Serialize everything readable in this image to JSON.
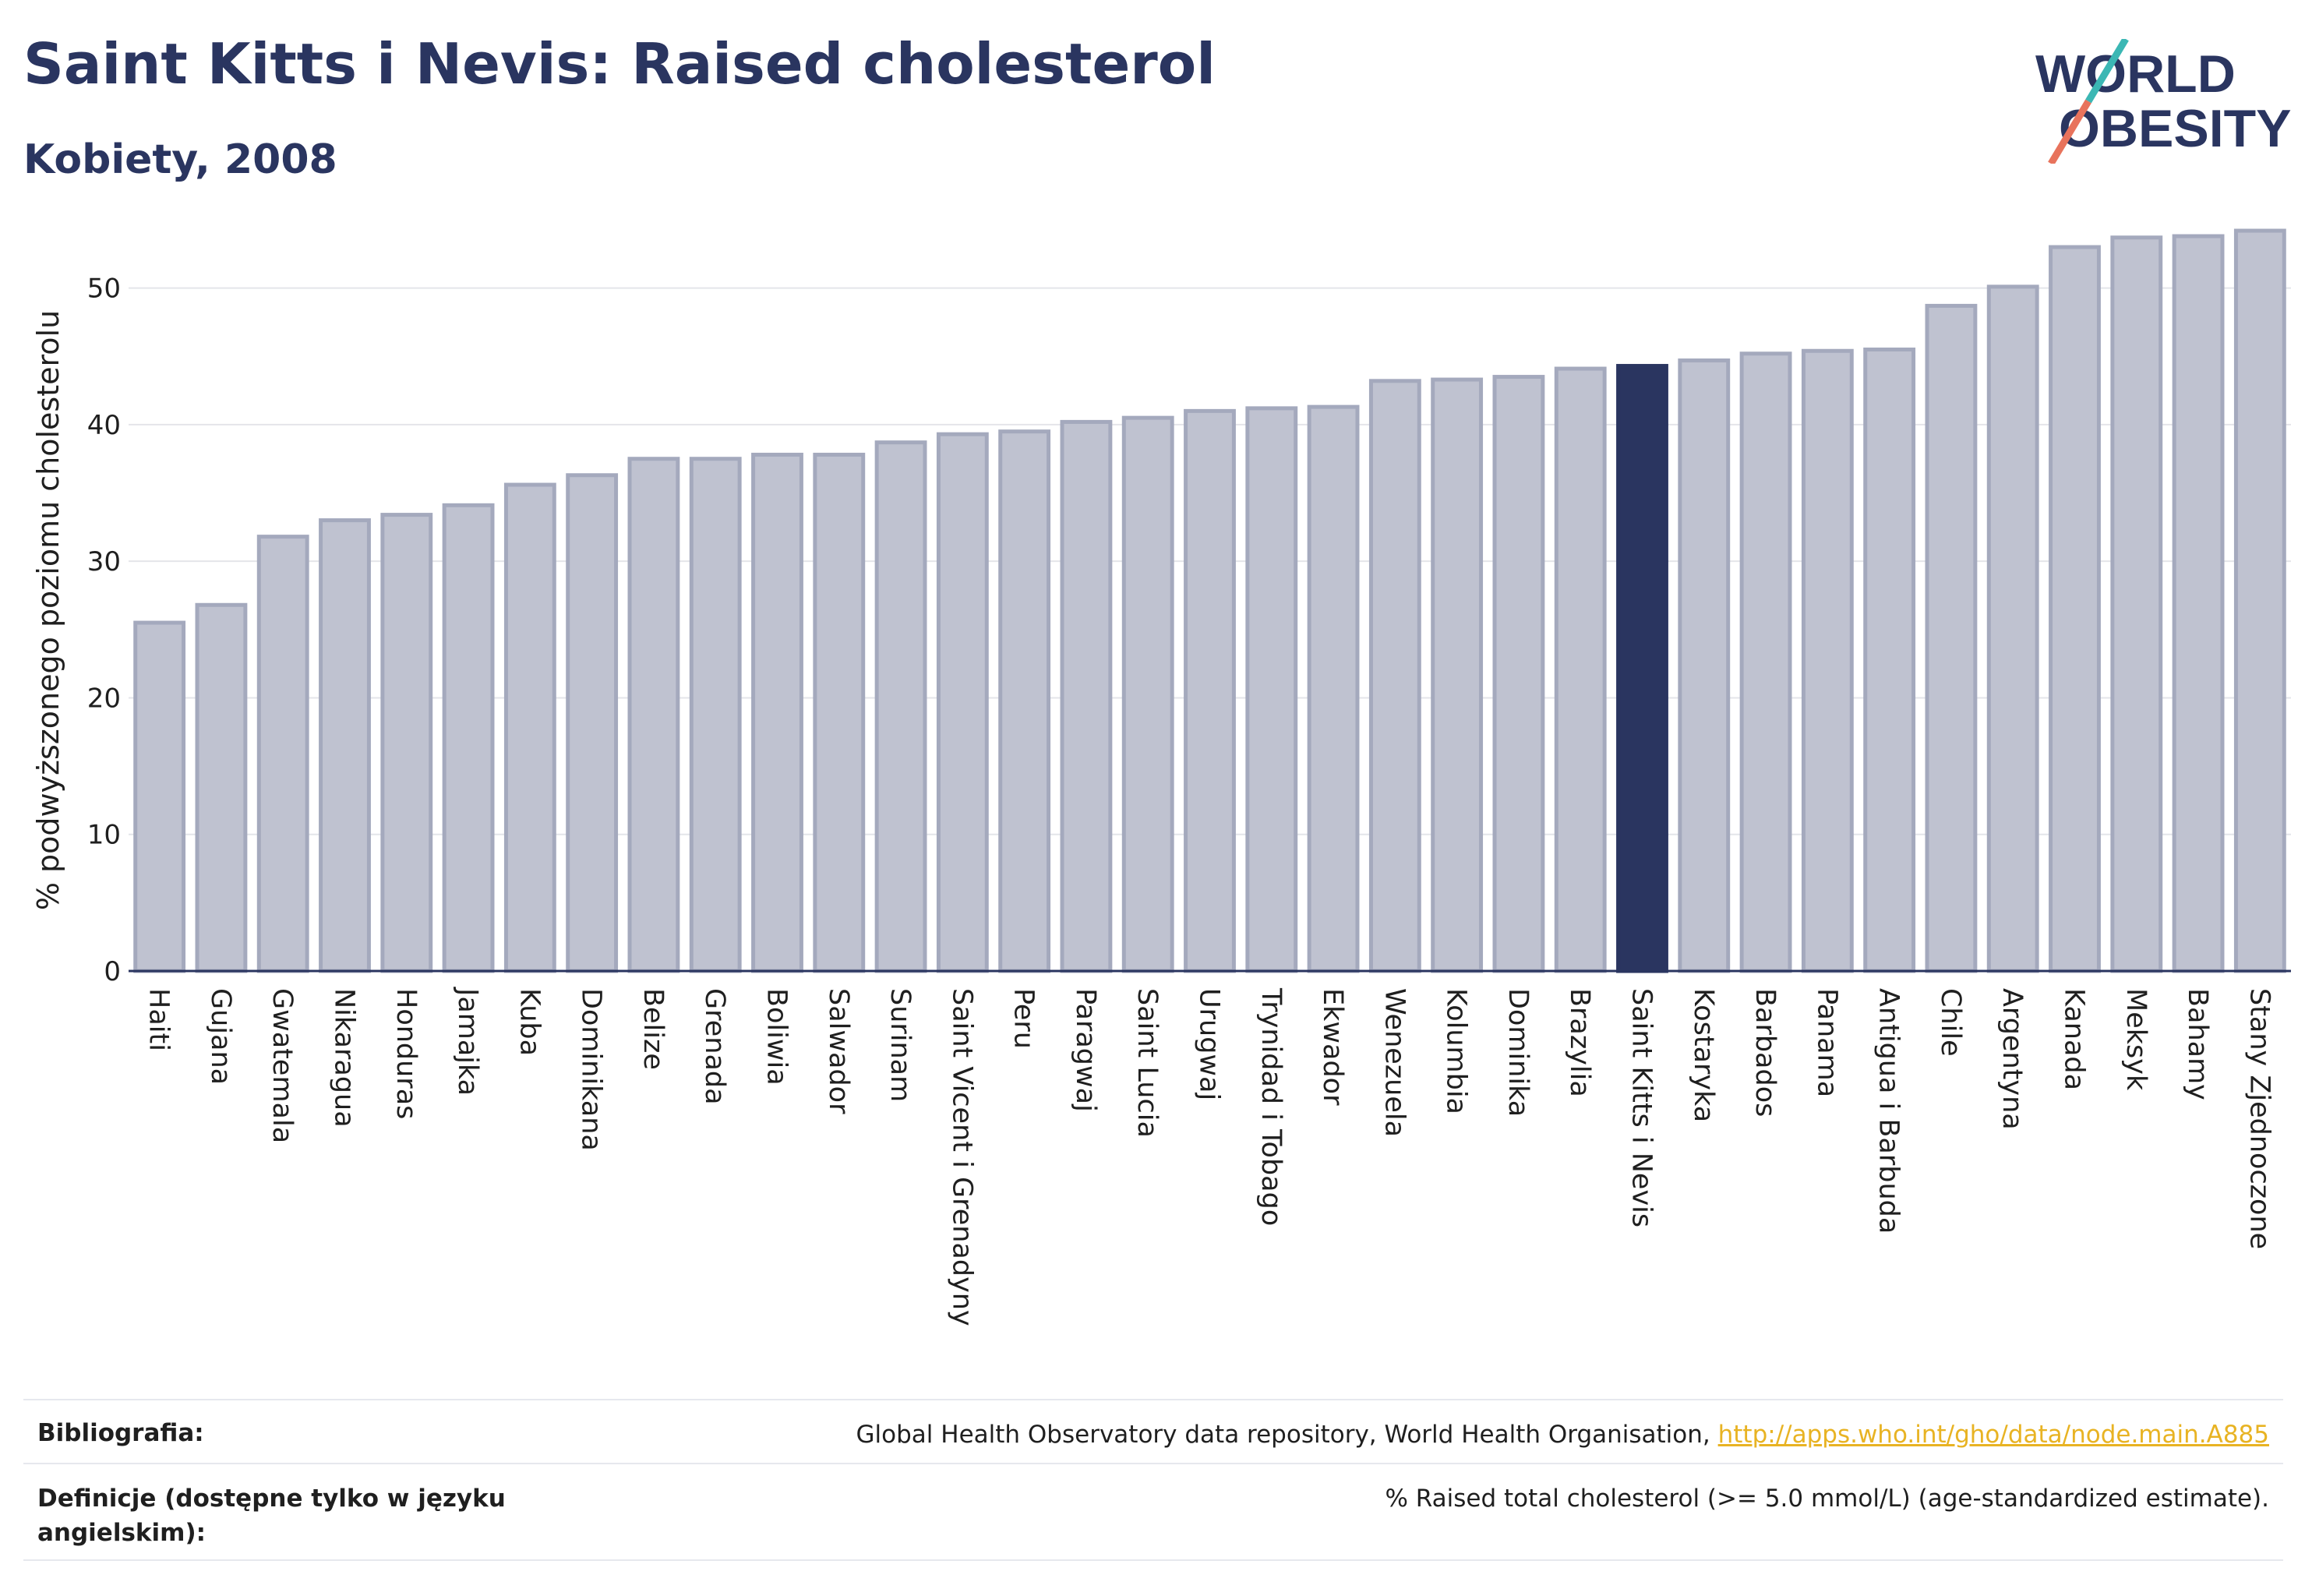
{
  "header": {
    "title": "Saint Kitts i Nevis: Raised cholesterol",
    "subtitle": "Kobiety, 2008"
  },
  "logo": {
    "line1": "WORLD",
    "line2": "OBESITY"
  },
  "colors": {
    "bar_default": "#bfc2d0",
    "bar_default_stroke": "#a4a9bd",
    "bar_highlight": "#2a3560",
    "gridline": "#e4e5ea",
    "axis_line": "#2a3560"
  },
  "chart_data": {
    "type": "bar",
    "ylabel": "% podwyższonego poziomu cholesterolu",
    "ylim": [
      0,
      55
    ],
    "yticks": [
      0,
      10,
      20,
      30,
      40,
      50
    ],
    "grid": true,
    "highlight": "Saint Kitts i Nevis",
    "categories": [
      "Haiti",
      "Gujana",
      "Gwatemala",
      "Nikaragua",
      "Honduras",
      "Jamajka",
      "Kuba",
      "Dominikana",
      "Belize",
      "Grenada",
      "Boliwia",
      "Salwador",
      "Surinam",
      "Saint Vicent i Grenadyny",
      "Peru",
      "Paragwaj",
      "Saint Lucia",
      "Urugwaj",
      "Trynidad i Tobago",
      "Ekwador",
      "Wenezuela",
      "Kolumbia",
      "Dominika",
      "Brazylia",
      "Saint Kitts i Nevis",
      "Kostaryka",
      "Barbados",
      "Panama",
      "Antigua i Barbuda",
      "Chile",
      "Argentyna",
      "Kanada",
      "Meksyk",
      "Bahamy",
      "Stany Zjednoczone"
    ],
    "values": [
      25.5,
      26.8,
      31.8,
      33.0,
      33.4,
      34.1,
      35.6,
      36.3,
      37.5,
      37.5,
      37.8,
      37.8,
      38.7,
      39.3,
      39.5,
      40.2,
      40.5,
      41.0,
      41.2,
      41.3,
      43.2,
      43.3,
      43.5,
      44.1,
      44.3,
      44.7,
      45.2,
      45.4,
      45.5,
      48.7,
      50.1,
      53.0,
      53.7,
      53.8,
      54.2
    ]
  },
  "footer": {
    "bibliography_label": "Bibliografia:",
    "bibliography_text": "Global Health Observatory data repository, World Health Organisation, ",
    "bibliography_link": "http://apps.who.int/gho/data/node.main.A885",
    "definitions_label": "Definicje (dostępne tylko w języku angielskim):",
    "definitions_text": "% Raised total cholesterol (>= 5.0 mmol/L) (age-standardized estimate)."
  }
}
